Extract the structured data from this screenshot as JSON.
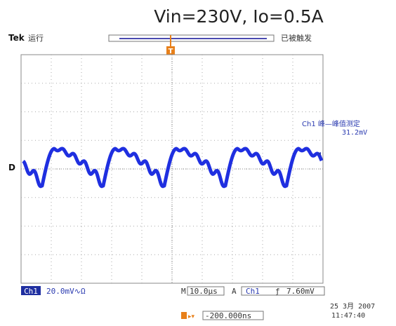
{
  "title": "Vin=230V, Io=0.5A",
  "top_bar": {
    "brand": "Tek",
    "status": "运行",
    "trigger_state": "已被触发",
    "trigger_marker": "T"
  },
  "ground_marker": "D",
  "measurement": {
    "label": "Ch1 峰—峰值测定",
    "value": "31.2mV"
  },
  "bottom_bar": {
    "channel": "Ch1",
    "scale": "20.0mV∿Ω",
    "timebase_prefix": "M",
    "timebase": "10.0μs",
    "trigger_prefix": "A",
    "trigger_channel": "Ch1",
    "trigger_slope": "ƒ",
    "trigger_level": "7.60mV",
    "position": "-200.000ns"
  },
  "timestamp": {
    "date": "25 3月  2007",
    "time": "11:47:40"
  }
}
